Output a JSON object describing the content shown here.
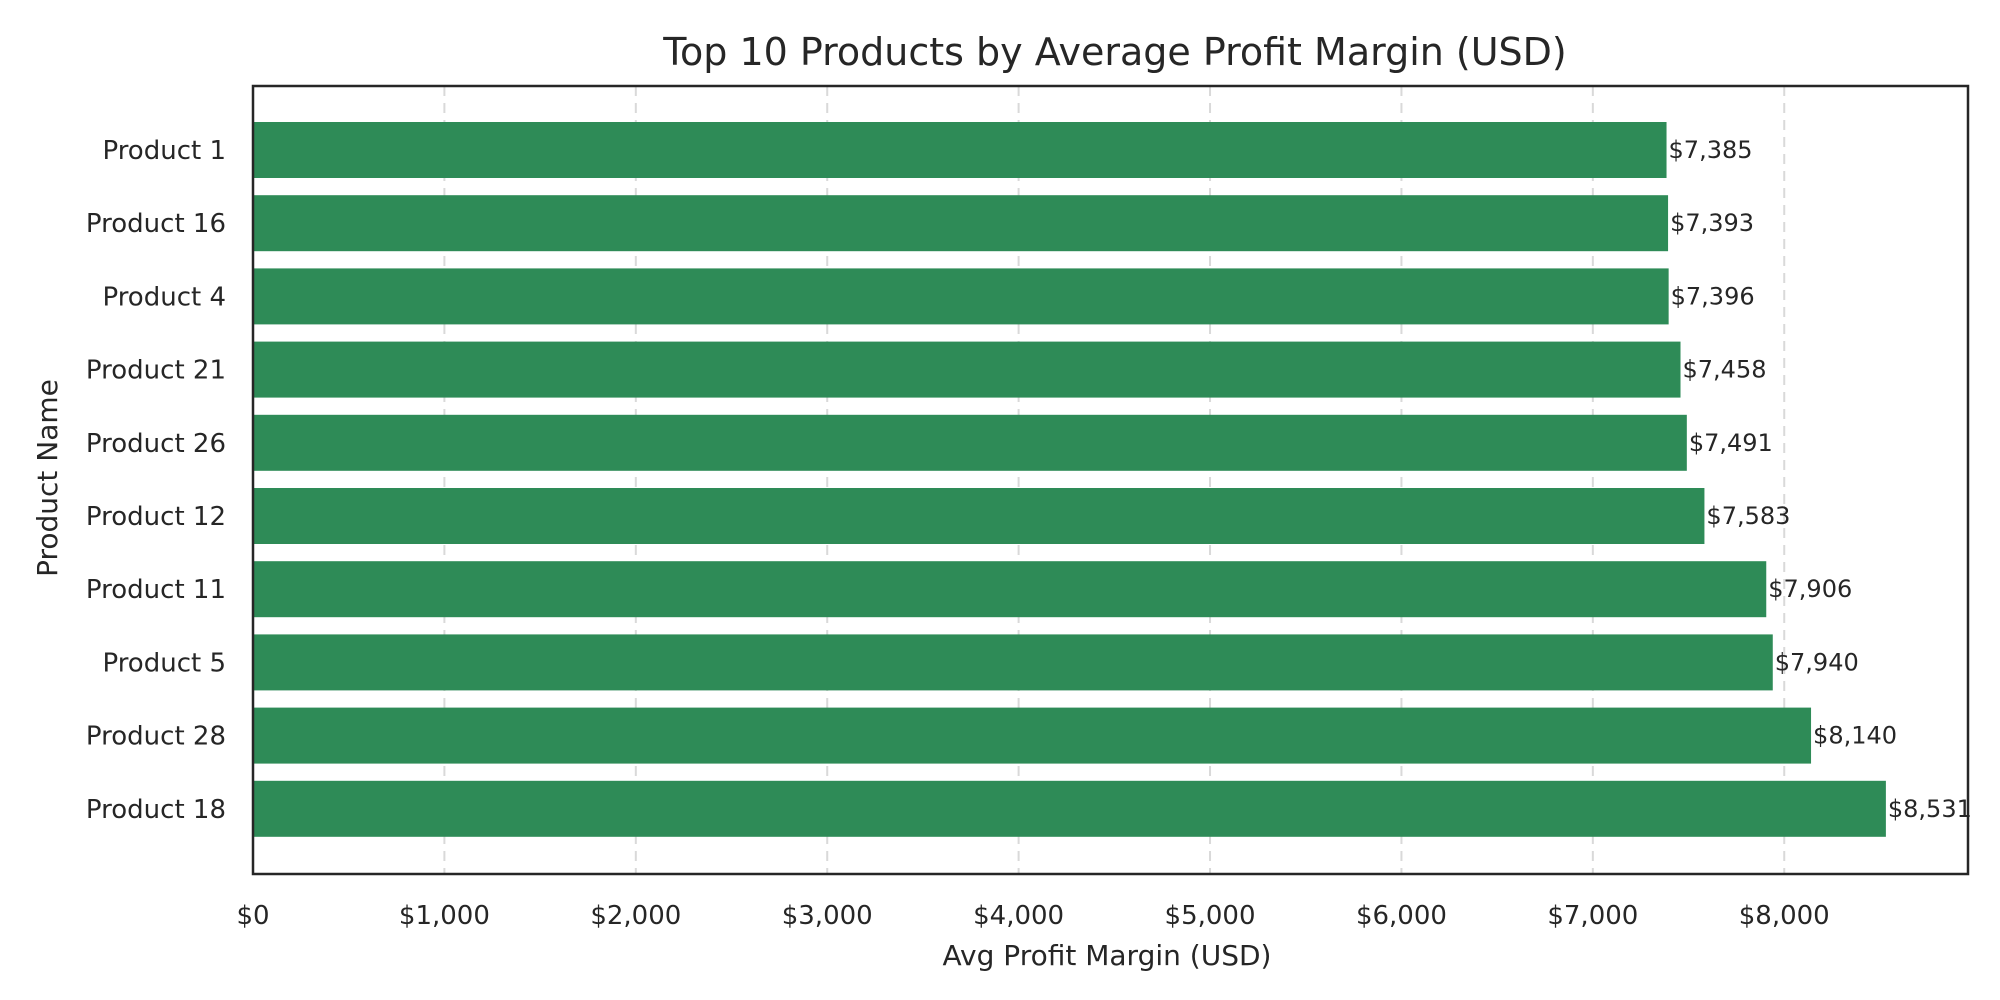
{
  "chart_data": {
    "type": "bar",
    "orientation": "horizontal",
    "title": "Top 10 Products by Average Profit Margin (USD)",
    "xlabel": "Avg Profit Margin (USD)",
    "ylabel": "Product Name",
    "categories": [
      "Product 1",
      "Product 16",
      "Product 4",
      "Product 21",
      "Product 26",
      "Product 12",
      "Product 11",
      "Product 5",
      "Product 28",
      "Product 18"
    ],
    "values": [
      7385,
      7393,
      7396,
      7458,
      7491,
      7583,
      7906,
      7940,
      8140,
      8531
    ],
    "value_labels": [
      "$7,385",
      "$7,393",
      "$7,396",
      "$7,458",
      "$7,491",
      "$7,583",
      "$7,906",
      "$7,940",
      "$8,140",
      "$8,531"
    ],
    "xlim": [
      0,
      8960
    ],
    "xticks": [
      0,
      1000,
      2000,
      3000,
      4000,
      5000,
      6000,
      7000,
      8000
    ],
    "xtick_labels": [
      "$0",
      "$1,000",
      "$2,000",
      "$3,000",
      "$4,000",
      "$5,000",
      "$6,000",
      "$7,000",
      "$8,000"
    ],
    "grid": "vertical dashed",
    "bar_color": "#2e8b57",
    "legend": "none"
  }
}
